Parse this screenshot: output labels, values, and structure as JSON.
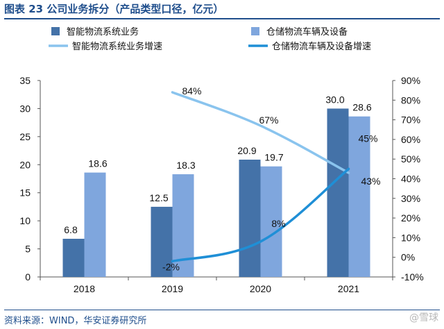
{
  "figure_title": "图表 23 公司业务拆分（产品类型口径，亿元）",
  "source": "资料来源：WIND，华安证券研究所",
  "watermark": "@雪球",
  "colors": {
    "title_blue": "#1f4e8c",
    "series1": "#4472a8",
    "series2": "#7fa6dd",
    "line1": "#8ac4ee",
    "line2": "#1f8fd6"
  },
  "chart_data": {
    "type": "bar",
    "categories": [
      "2018",
      "2019",
      "2020",
      "2021"
    ],
    "series": [
      {
        "name": "智能物流系统业务",
        "kind": "bar",
        "axis": "left",
        "values": [
          6.8,
          12.5,
          20.9,
          30.0
        ],
        "labels": [
          "6.8",
          "12.5",
          "20.9",
          "30.0"
        ]
      },
      {
        "name": "仓储物流车辆及设备",
        "kind": "bar",
        "axis": "left",
        "values": [
          18.6,
          18.3,
          19.7,
          28.6
        ],
        "labels": [
          "18.6",
          "18.3",
          "19.7",
          "28.6"
        ]
      },
      {
        "name": "智能物流系统业务增速",
        "kind": "line",
        "axis": "right",
        "values": [
          null,
          84,
          67,
          43
        ],
        "labels": [
          "",
          "84%",
          "67%",
          "43%"
        ]
      },
      {
        "name": "仓储物流车辆及设备增速",
        "kind": "line",
        "axis": "right",
        "values": [
          null,
          -2,
          8,
          45
        ],
        "labels": [
          "",
          "-2%",
          "8%",
          "45%"
        ]
      }
    ],
    "y_left": {
      "lim": [
        0,
        35
      ],
      "ticks": [
        "0",
        "5",
        "10",
        "15",
        "20",
        "25",
        "30",
        "35"
      ]
    },
    "y_right": {
      "lim": [
        -10,
        90
      ],
      "ticks": [
        "-10%",
        "0%",
        "10%",
        "20%",
        "30%",
        "40%",
        "50%",
        "60%",
        "70%",
        "80%",
        "90%"
      ]
    },
    "grid": false,
    "legend_position": "top"
  }
}
